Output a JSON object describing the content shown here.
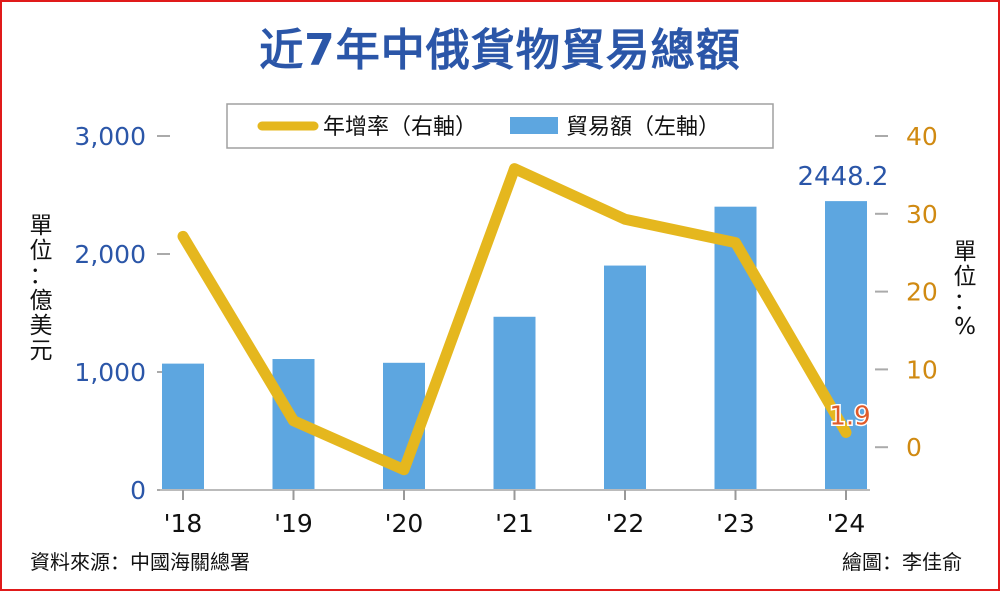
{
  "title": "近7年中俄貨物貿易總額",
  "unit_left": "單位：億美元",
  "unit_right": "單位：%",
  "source": "資料來源：中國海關總署",
  "credit": "繪圖：李佳俞",
  "colors": {
    "bar": "#5da6e0",
    "line": "#e5b71e",
    "left_axis": "#2b56a8",
    "right_axis": "#d08a12",
    "label_last": "#e05a2a",
    "border": "#e01a1a"
  },
  "chart_data": {
    "type": "bar+line",
    "categories": [
      "'18",
      "'19",
      "'20",
      "'21",
      "'22",
      "'23",
      "'24"
    ],
    "series": [
      {
        "name": "貿易額（左軸）",
        "type": "bar",
        "axis": "left",
        "values": [
          1071,
          1110,
          1078,
          1468,
          1902,
          2401,
          2448.2
        ]
      },
      {
        "name": "年增率（右軸）",
        "type": "line",
        "axis": "right",
        "values": [
          27.1,
          3.4,
          -2.9,
          35.8,
          29.3,
          26.3,
          1.9
        ]
      }
    ],
    "left_axis": {
      "ticks": [
        "3,000",
        "2,000",
        "1,000",
        "0"
      ],
      "tick_values": [
        3000,
        2000,
        1000,
        0
      ],
      "ylim": [
        0,
        3000
      ]
    },
    "right_axis": {
      "ticks": [
        "40",
        "30",
        "20",
        "10",
        "0"
      ],
      "tick_values": [
        40,
        30,
        20,
        10,
        0
      ],
      "ylim": [
        -5.5,
        40
      ]
    },
    "annotations": [
      {
        "text": "2448.2",
        "series": 0,
        "index": 6
      },
      {
        "text": "1.9",
        "series": 1,
        "index": 6
      }
    ],
    "legend_position": "top-center",
    "grid": false
  }
}
